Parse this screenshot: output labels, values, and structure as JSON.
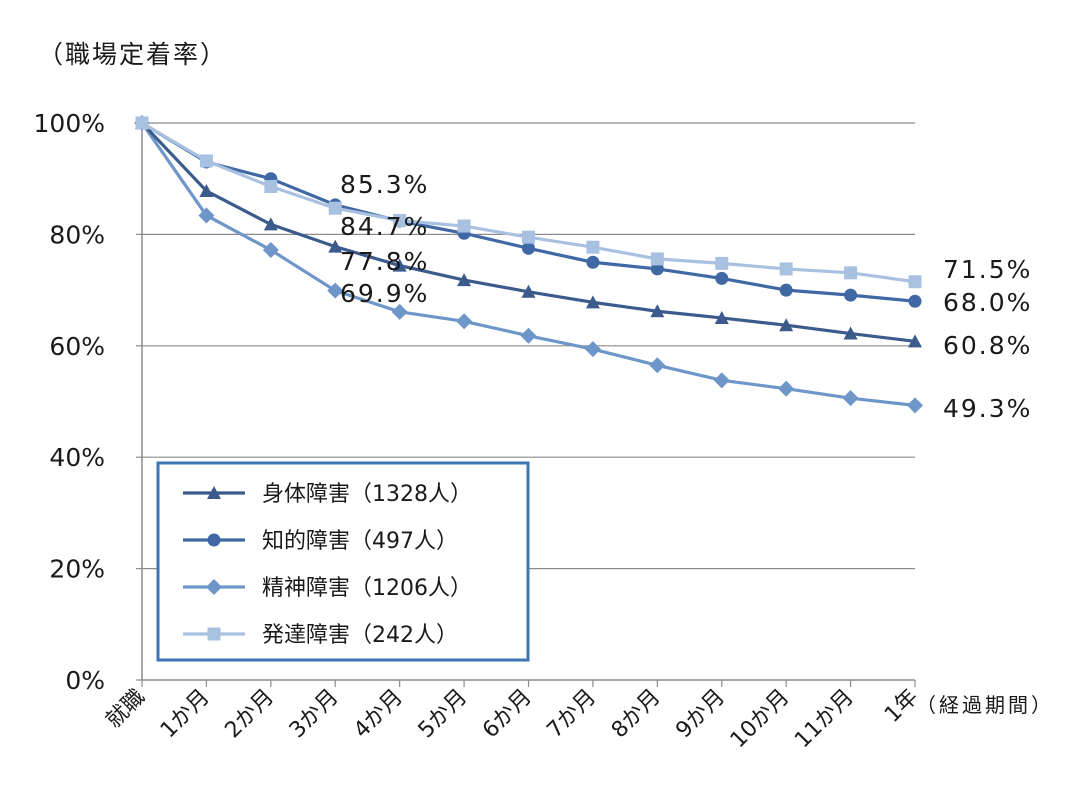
{
  "chart_data": {
    "type": "line",
    "ylabel": "（職場定着率）",
    "xlabel": "（経過期間）",
    "ylim": [
      0,
      100
    ],
    "yticks": [
      "0%",
      "20%",
      "40%",
      "60%",
      "80%",
      "100%"
    ],
    "categories": [
      "就職",
      "1か月",
      "2か月",
      "3か月",
      "4か月",
      "5か月",
      "6か月",
      "7か月",
      "8か月",
      "9か月",
      "10か月",
      "11か月",
      "1年"
    ],
    "grid": true,
    "legend_position": "bottom-left",
    "series": [
      {
        "name": "身体障害（1328人）",
        "marker": "triangle",
        "color": "#3b5b8c",
        "values": [
          100,
          87.8,
          81.8,
          77.8,
          74.4,
          71.8,
          69.7,
          67.8,
          66.2,
          65.0,
          63.7,
          62.2,
          60.8
        ],
        "labels": {
          "3": "77.8%",
          "12": "60.8%"
        }
      },
      {
        "name": "知的障害（497人）",
        "marker": "circle",
        "color": "#3f68a4",
        "values": [
          100,
          93.0,
          90.0,
          85.3,
          82.4,
          80.2,
          77.5,
          75.0,
          73.8,
          72.1,
          70.0,
          69.1,
          68.0
        ],
        "labels": {
          "3": "85.3%",
          "12": "68.0%"
        }
      },
      {
        "name": "精神障害（1206人）",
        "marker": "diamond",
        "color": "#6f96c9",
        "values": [
          100,
          83.4,
          77.2,
          69.9,
          66.1,
          64.4,
          61.8,
          59.4,
          56.5,
          53.8,
          52.3,
          50.6,
          49.3
        ],
        "labels": {
          "3": "69.9%",
          "12": "49.3%"
        }
      },
      {
        "name": "発達障害（242人）",
        "marker": "square",
        "color": "#a8c1e0",
        "values": [
          100,
          93.2,
          88.6,
          84.7,
          82.5,
          81.5,
          79.5,
          77.7,
          75.6,
          74.8,
          73.8,
          73.1,
          71.5
        ],
        "labels": {
          "3": "84.7%",
          "12": "71.5%"
        }
      }
    ]
  }
}
